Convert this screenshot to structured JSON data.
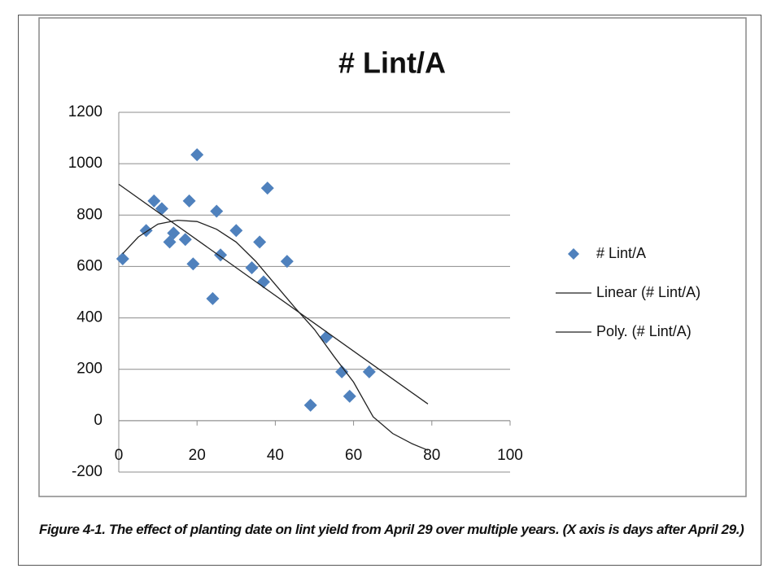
{
  "chart_data": {
    "type": "scatter",
    "title": "# Lint/A",
    "xlim": [
      0,
      100
    ],
    "xticks": [
      0,
      20,
      40,
      60,
      80,
      100
    ],
    "ylim": [
      -200,
      1200
    ],
    "yticks": [
      -200,
      0,
      200,
      400,
      600,
      800,
      1000,
      1200
    ],
    "grid": true,
    "legend": "right",
    "series": [
      {
        "name": "# Lint/A",
        "kind": "scatter",
        "color": "#4f81bd",
        "x": [
          1,
          7,
          9,
          11,
          13,
          14,
          17,
          18,
          19,
          20,
          24,
          25,
          26,
          30,
          34,
          36,
          37,
          38,
          43,
          49,
          53,
          57,
          59,
          64
        ],
        "values": [
          630,
          740,
          855,
          825,
          695,
          730,
          705,
          855,
          610,
          1035,
          475,
          815,
          645,
          740,
          595,
          695,
          540,
          905,
          620,
          60,
          325,
          190,
          95,
          190
        ]
      },
      {
        "name": "Linear (# Lint/A)",
        "kind": "line",
        "color": "#222222",
        "x": [
          0,
          79
        ],
        "values": [
          920,
          65
        ]
      },
      {
        "name": "Poly. (# Lint/A)",
        "kind": "line",
        "color": "#222222",
        "x": [
          1,
          5,
          10,
          15,
          20,
          25,
          30,
          35,
          40,
          45,
          50,
          55,
          60,
          65,
          70,
          75,
          79
        ],
        "values": [
          650,
          715,
          765,
          780,
          775,
          745,
          695,
          620,
          530,
          440,
          355,
          250,
          150,
          15,
          -50,
          -90,
          -115
        ]
      }
    ]
  },
  "caption": "Figure 4-1. The effect of planting date on lint yield from April 29 over multiple years. (X axis is days after April 29.)"
}
